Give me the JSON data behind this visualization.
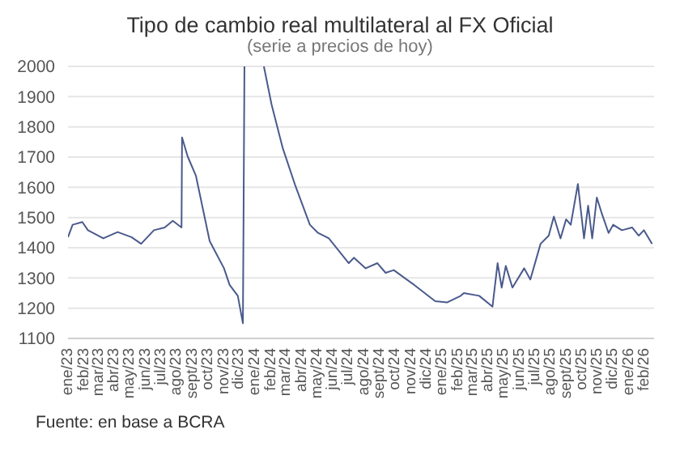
{
  "chart_data": {
    "type": "line",
    "title": "Tipo de cambio real multilateral al FX Oficial",
    "subtitle": "(serie a precios de hoy)",
    "annotations": [
      "Fuente: en base a BCRA"
    ],
    "grid": "y",
    "x": [
      "2023-01-01",
      "2023-01-10",
      "2023-01-29",
      "2023-02-09",
      "2023-03-11",
      "2023-04-08",
      "2023-05-05",
      "2023-05-24",
      "2023-06-18",
      "2023-07-09",
      "2023-07-25",
      "2023-08-11",
      "2023-08-12",
      "2023-08-23",
      "2023-09-08",
      "2023-10-05",
      "2023-11-02",
      "2023-11-13",
      "2023-11-29",
      "2023-12-09",
      "2023-12-12",
      "2023-12-20",
      "2024-01-19",
      "2024-02-03",
      "2024-02-25",
      "2024-03-21",
      "2024-04-18",
      "2024-05-04",
      "2024-05-25",
      "2024-07-03",
      "2024-07-13",
      "2024-08-05",
      "2024-08-28",
      "2024-09-13",
      "2024-09-29",
      "2024-11-08",
      "2024-12-19",
      "2025-01-11",
      "2025-02-07",
      "2025-02-13",
      "2025-03-15",
      "2025-04-10",
      "2025-04-20",
      "2025-04-28",
      "2025-05-06",
      "2025-05-19",
      "2025-06-11",
      "2025-06-23",
      "2025-07-13",
      "2025-07-29",
      "2025-08-08",
      "2025-08-21",
      "2025-09-01",
      "2025-09-10",
      "2025-09-24",
      "2025-10-06",
      "2025-10-14",
      "2025-10-22",
      "2025-10-31",
      "2025-11-10",
      "2025-11-23",
      "2025-12-02",
      "2025-12-19",
      "2026-01-08",
      "2026-01-21",
      "2026-01-31",
      "2026-02-16"
    ],
    "series": [
      {
        "color": "#4a5a8c",
        "values": [
          1435,
          1476,
          1485,
          1458,
          1431,
          1452,
          1435,
          1413,
          1458,
          1467,
          1489,
          1467,
          1765,
          1702,
          1639,
          1422,
          1332,
          1277,
          1241,
          1150,
          2000,
          null,
          2000,
          1874,
          1729,
          1603,
          1476,
          1449,
          1431,
          1349,
          1367,
          1332,
          1349,
          1317,
          1326,
          1277,
          1223,
          1219,
          1241,
          1250,
          1241,
          1205,
          1349,
          1268,
          1340,
          1268,
          1332,
          1295,
          1413,
          1440,
          1503,
          1431,
          1494,
          1476,
          1611,
          1431,
          1539,
          1431,
          1566,
          1512,
          1449,
          1476,
          1458,
          1467,
          1440,
          1458,
          1413
        ]
      }
    ],
    "ylim": [
      1100,
      2000
    ],
    "yticks": [
      1100,
      1200,
      1300,
      1400,
      1500,
      1600,
      1700,
      1800,
      1900,
      2000
    ],
    "xlim": [
      "2023-01-01",
      "2026-02-20"
    ],
    "xticks": [
      {
        "value": "2023-01-01",
        "label": "ene/23"
      },
      {
        "value": "2023-02-01",
        "label": "feb/23"
      },
      {
        "value": "2023-03-01",
        "label": "mar/23"
      },
      {
        "value": "2023-04-01",
        "label": "abr/23"
      },
      {
        "value": "2023-05-01",
        "label": "may/23"
      },
      {
        "value": "2023-06-01",
        "label": "jun/23"
      },
      {
        "value": "2023-07-01",
        "label": "jul/23"
      },
      {
        "value": "2023-08-01",
        "label": "ago/23"
      },
      {
        "value": "2023-09-01",
        "label": "sept/23"
      },
      {
        "value": "2023-10-01",
        "label": "oct/23"
      },
      {
        "value": "2023-11-01",
        "label": "nov/23"
      },
      {
        "value": "2023-12-01",
        "label": "dic/23"
      },
      {
        "value": "2024-01-01",
        "label": "ene/24"
      },
      {
        "value": "2024-02-01",
        "label": "feb/24"
      },
      {
        "value": "2024-03-01",
        "label": "mar/24"
      },
      {
        "value": "2024-04-01",
        "label": "abr/24"
      },
      {
        "value": "2024-05-01",
        "label": "may/24"
      },
      {
        "value": "2024-06-01",
        "label": "jun/24"
      },
      {
        "value": "2024-07-01",
        "label": "jul/24"
      },
      {
        "value": "2024-08-01",
        "label": "ago/24"
      },
      {
        "value": "2024-09-01",
        "label": "sept/24"
      },
      {
        "value": "2024-10-01",
        "label": "oct/24"
      },
      {
        "value": "2024-11-01",
        "label": "nov/24"
      },
      {
        "value": "2024-12-01",
        "label": "dic/24"
      },
      {
        "value": "2025-01-01",
        "label": "ene/25"
      },
      {
        "value": "2025-02-01",
        "label": "feb/25"
      },
      {
        "value": "2025-03-01",
        "label": "mar/25"
      },
      {
        "value": "2025-04-01",
        "label": "abr/25"
      },
      {
        "value": "2025-05-01",
        "label": "may/25"
      },
      {
        "value": "2025-06-01",
        "label": "jun/25"
      },
      {
        "value": "2025-07-01",
        "label": "jul/25"
      },
      {
        "value": "2025-08-01",
        "label": "ago/25"
      },
      {
        "value": "2025-09-01",
        "label": "sept/25"
      },
      {
        "value": "2025-10-01",
        "label": "oct/25"
      },
      {
        "value": "2025-11-01",
        "label": "nov/25"
      },
      {
        "value": "2025-12-01",
        "label": "dic/25"
      },
      {
        "value": "2026-01-01",
        "label": "ene/26"
      },
      {
        "value": "2026-02-01",
        "label": "feb/26"
      }
    ]
  }
}
